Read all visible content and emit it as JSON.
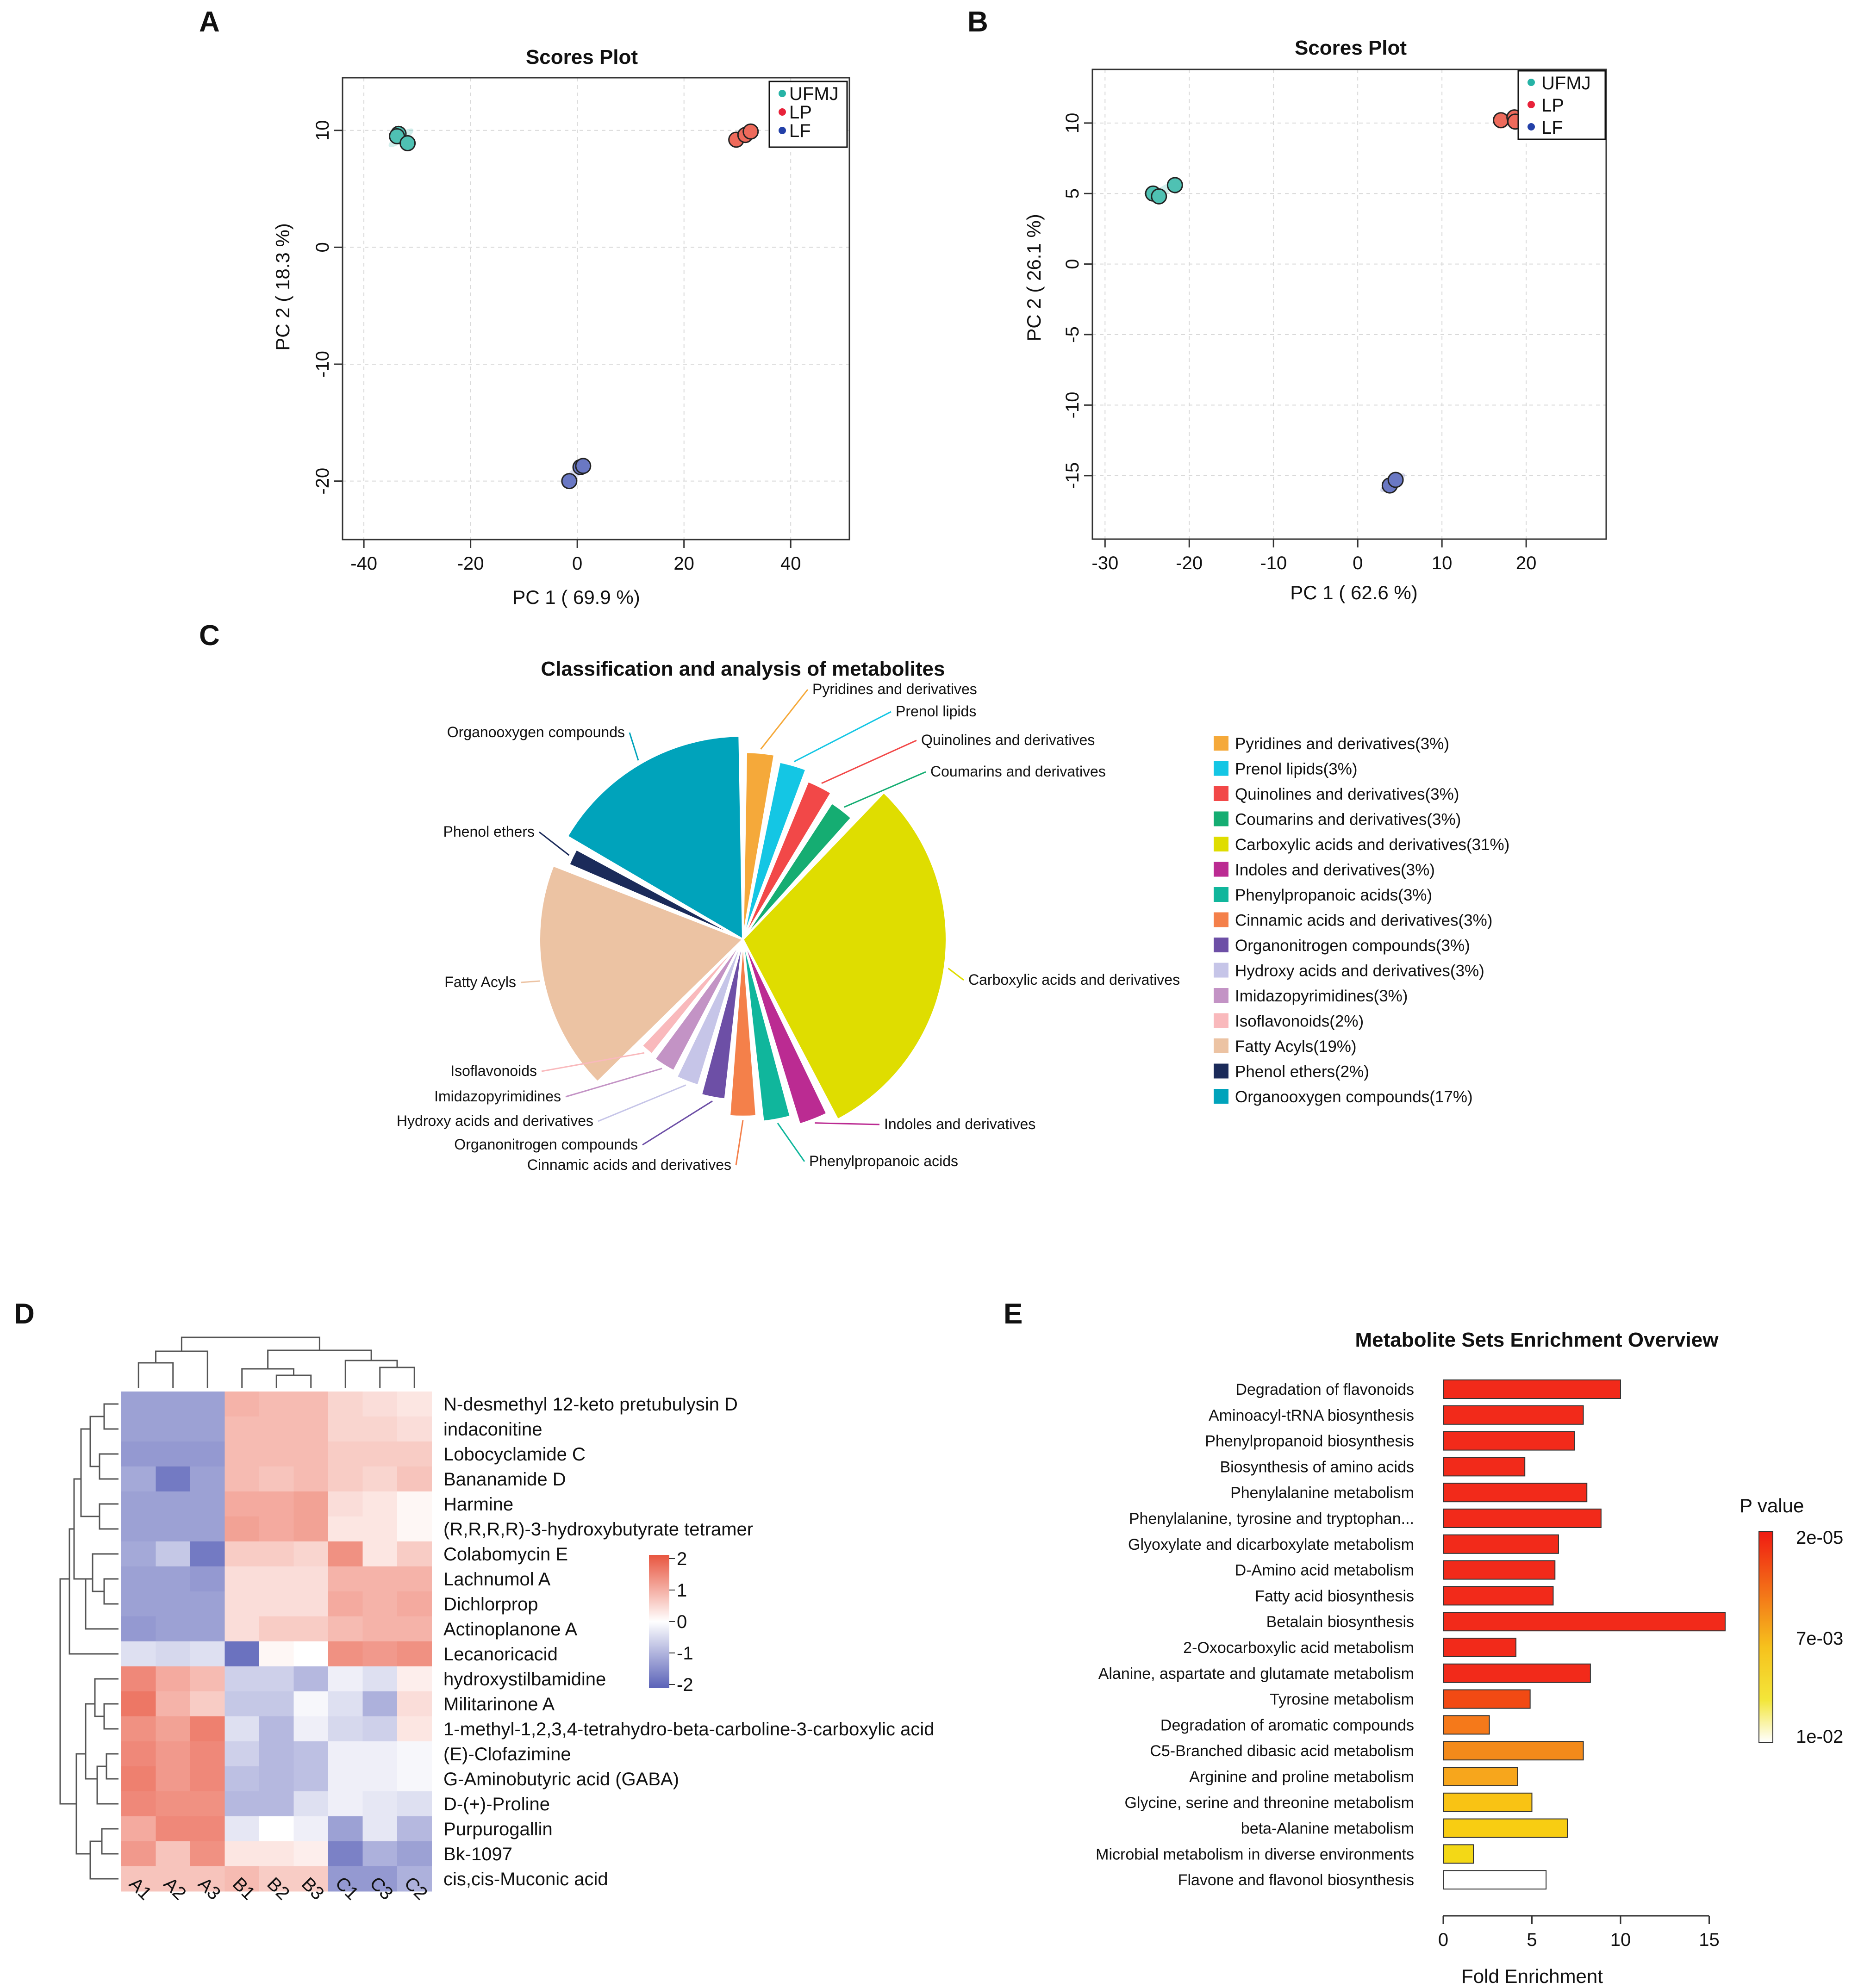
{
  "panels": {
    "a": "A",
    "b": "B",
    "c": "C",
    "d": "D",
    "e": "E"
  },
  "colors": {
    "UFMJ": "#4fc1b3",
    "LP": "#ee6a5b",
    "LF": "#6a78c4"
  },
  "chart_data": [
    {
      "id": "A",
      "type": "scatter",
      "title": "Scores Plot",
      "xlabel": "PC 1 ( 69.9 %)",
      "ylabel": "PC 2 ( 18.3 %)",
      "xlim": [
        -44,
        51
      ],
      "ylim": [
        -25,
        14.5
      ],
      "xticks": [
        -40,
        -20,
        0,
        20,
        40
      ],
      "yticks": [
        10,
        0,
        -10,
        -20
      ],
      "tick_labels_x": [
        "-40",
        "-20",
        "0",
        "20",
        "40"
      ],
      "tick_labels_y": [
        "10",
        "0",
        "-10",
        "-20"
      ],
      "grid": true,
      "legend": "top-right",
      "legend_labels": [
        "UFMJ",
        "LP",
        "LF"
      ],
      "series": [
        {
          "name": "UFMJ",
          "points": [
            [
              -33.5,
              9.7
            ],
            [
              -33.8,
              9.5
            ],
            [
              -31.8,
              8.9
            ]
          ]
        },
        {
          "name": "LP",
          "points": [
            [
              29.8,
              9.2
            ],
            [
              31.5,
              9.6
            ],
            [
              32.5,
              9.9
            ]
          ]
        },
        {
          "name": "LF",
          "points": [
            [
              -1.5,
              -20.0
            ],
            [
              0.6,
              -18.8
            ],
            [
              1.1,
              -18.7
            ]
          ]
        }
      ]
    },
    {
      "id": "B",
      "type": "scatter",
      "title": "Scores Plot",
      "xlabel": "PC 1 ( 62.6 %)",
      "ylabel": "PC 2 ( 26.1 %)",
      "xlim": [
        -31.5,
        29.5
      ],
      "ylim": [
        -19.5,
        13.8
      ],
      "xticks": [
        -30,
        -20,
        -10,
        0,
        10,
        20
      ],
      "yticks": [
        10,
        5,
        0,
        -5,
        -10,
        -15
      ],
      "tick_labels_x": [
        "-30",
        "-20",
        "-10",
        "0",
        "10",
        "20"
      ],
      "tick_labels_y": [
        "10",
        "5",
        "0",
        "-5",
        "-10",
        "-15"
      ],
      "grid": true,
      "legend": "top-right",
      "legend_labels": [
        "UFMJ",
        "LP",
        "LF"
      ],
      "series": [
        {
          "name": "UFMJ",
          "points": [
            [
              -24.3,
              5.0
            ],
            [
              -23.6,
              4.8
            ],
            [
              -21.7,
              5.6
            ]
          ]
        },
        {
          "name": "LP",
          "points": [
            [
              17.0,
              10.2
            ],
            [
              18.6,
              10.4
            ],
            [
              18.7,
              10.1
            ]
          ]
        },
        {
          "name": "LF",
          "points": [
            [
              3.8,
              -15.7
            ],
            [
              4.5,
              -15.3
            ]
          ]
        }
      ]
    },
    {
      "id": "C",
      "type": "pie",
      "title": "Classification and analysis of metabolites",
      "slices": [
        {
          "label": "Pyridines and derivatives",
          "legend": "Pyridines and derivatives(3%)",
          "value": 3,
          "r": 0.92,
          "color": "#f5a93a"
        },
        {
          "label": "Prenol lipids",
          "legend": "Prenol lipids(3%)",
          "value": 3,
          "r": 0.89,
          "color": "#14c6e4"
        },
        {
          "label": "Quinolines and derivatives",
          "legend": "Quinolines and derivatives(3%)",
          "value": 3,
          "r": 0.84,
          "color": "#f24848"
        },
        {
          "label": "Coumarins and derivatives",
          "legend": "Coumarins and derivatives(3%)",
          "value": 3,
          "r": 0.8,
          "color": "#15ad72"
        },
        {
          "label": "Carboxylic acids and derivatives",
          "legend": "Carboxylic acids and derivatives(31%)",
          "value": 31,
          "r": 1.0,
          "color": "#dfdd00"
        },
        {
          "label": "Indoles and derivatives",
          "legend": "Indoles and derivatives(3%)",
          "value": 3,
          "r": 0.95,
          "color": "#bb2b92"
        },
        {
          "label": "Phenylpropanoic acids",
          "legend": "Phenylpropanoic acids(3%)",
          "value": 3,
          "r": 0.9,
          "color": "#10b69c"
        },
        {
          "label": "Cinnamic acids and derivatives",
          "legend": "Cinnamic acids and derivatives(3%)",
          "value": 3,
          "r": 0.87,
          "color": "#f4804a"
        },
        {
          "label": "Organonitrogen compounds",
          "legend": "Organonitrogen compounds(3%)",
          "value": 3,
          "r": 0.79,
          "color": "#6d4fa6"
        },
        {
          "label": "Hydroxy acids and derivatives",
          "legend": "Hydroxy acids and derivatives(3%)",
          "value": 3,
          "r": 0.75,
          "color": "#c6c5e8"
        },
        {
          "label": "Imidazopyrimidines",
          "legend": "Imidazopyrimidines(3%)",
          "value": 3,
          "r": 0.73,
          "color": "#c393c5"
        },
        {
          "label": "Isoflavonoids",
          "legend": "Isoflavonoids(2%)",
          "value": 2,
          "r": 0.72,
          "color": "#f9b9bc"
        },
        {
          "label": "Fatty Acyls",
          "legend": "Fatty Acyls(19%)",
          "value": 19,
          "r": 1.0,
          "color": "#ecc3a3"
        },
        {
          "label": "Phenol ethers",
          "legend": "Phenol ethers(2%)",
          "value": 2,
          "r": 0.93,
          "color": "#1b2b5a"
        },
        {
          "label": "Organooxygen compounds",
          "legend": "Organooxygen compounds(17%)",
          "value": 17,
          "r": 1.0,
          "color": "#00a3bb"
        }
      ]
    },
    {
      "id": "D",
      "type": "heatmap",
      "columns": [
        "A1",
        "A2",
        "A3",
        "B1",
        "B2",
        "B3",
        "C1",
        "C3",
        "C2"
      ],
      "rows": [
        "N-desmethyl 12-keto pretubulysin D",
        "indaconitine",
        "Lobocyclamide C",
        "Bananamide D",
        "Harmine",
        "(R,R,R,R)-3-hydroxybutyrate tetramer",
        "Colabomycin E",
        "Lachnumol A",
        "Dichlorprop",
        "Actinoplanone A",
        "Lecanoricacid",
        "hydroxystilbamidine",
        "Militarinone A",
        "1-methyl-1,2,3,4-tetrahydro-beta-carboline-3-carboxylic acid",
        "(E)-Clofazimine",
        "G-Aminobutyric acid (GABA)",
        "D-(+)-Proline",
        "Purpurogallin",
        "Bk-1097",
        "cis,cis-Muconic acid"
      ],
      "values": [
        [
          -1.2,
          -1.2,
          -1.2,
          0.9,
          0.8,
          0.8,
          0.5,
          0.4,
          0.3
        ],
        [
          -1.2,
          -1.2,
          -1.2,
          0.8,
          0.8,
          0.8,
          0.5,
          0.5,
          0.4
        ],
        [
          -1.3,
          -1.3,
          -1.3,
          0.8,
          0.8,
          0.8,
          0.6,
          0.6,
          0.6
        ],
        [
          -1.1,
          -1.7,
          -1.2,
          0.8,
          0.7,
          0.8,
          0.6,
          0.5,
          0.7
        ],
        [
          -1.2,
          -1.2,
          -1.2,
          1.0,
          1.0,
          1.1,
          0.4,
          0.3,
          0.1
        ],
        [
          -1.2,
          -1.2,
          -1.2,
          1.1,
          1.0,
          1.1,
          0.3,
          0.3,
          0.1
        ],
        [
          -1.1,
          -0.7,
          -1.7,
          0.6,
          0.6,
          0.5,
          1.3,
          0.3,
          0.6
        ],
        [
          -1.2,
          -1.2,
          -1.3,
          0.4,
          0.4,
          0.4,
          0.9,
          0.9,
          0.9
        ],
        [
          -1.2,
          -1.2,
          -1.2,
          0.4,
          0.4,
          0.4,
          1.0,
          0.9,
          1.0
        ],
        [
          -1.3,
          -1.2,
          -1.2,
          0.4,
          0.6,
          0.6,
          0.8,
          0.9,
          0.9
        ],
        [
          -0.4,
          -0.5,
          -0.4,
          -1.8,
          0.1,
          0.0,
          1.3,
          1.2,
          1.3
        ],
        [
          1.4,
          1.0,
          0.8,
          -0.6,
          -0.6,
          -0.9,
          -0.2,
          -0.4,
          0.2
        ],
        [
          1.6,
          0.9,
          0.6,
          -0.7,
          -0.7,
          -0.1,
          -0.4,
          -1.0,
          0.4
        ],
        [
          1.3,
          1.1,
          1.5,
          -0.4,
          -0.9,
          -0.2,
          -0.5,
          -0.6,
          0.3
        ],
        [
          1.4,
          1.2,
          1.4,
          -0.6,
          -0.9,
          -0.8,
          -0.2,
          -0.2,
          -0.1
        ],
        [
          1.5,
          1.2,
          1.4,
          -0.8,
          -0.9,
          -0.8,
          -0.2,
          -0.2,
          -0.1
        ],
        [
          1.4,
          1.3,
          1.3,
          -0.9,
          -0.9,
          -0.4,
          -0.2,
          -0.3,
          -0.4
        ],
        [
          1.0,
          1.4,
          1.4,
          -0.3,
          0.0,
          -0.2,
          -1.2,
          -0.3,
          -0.9
        ],
        [
          1.2,
          0.7,
          1.3,
          0.3,
          0.3,
          0.2,
          -1.6,
          -1.0,
          -1.2
        ],
        [
          0.7,
          0.7,
          0.7,
          0.8,
          0.6,
          0.6,
          -1.3,
          -1.3,
          -1.0
        ]
      ],
      "scale_ticks": [
        "2",
        "1",
        "0",
        "-1",
        "-2"
      ],
      "scale_range": [
        -2,
        2
      ]
    },
    {
      "id": "E",
      "type": "bar",
      "orientation": "horizontal",
      "title": "Metabolite Sets Enrichment Overview",
      "xlabel": "Fold Enrichment",
      "xticks": [
        0,
        5,
        10,
        15
      ],
      "tick_labels_x": [
        "0",
        "5",
        "10",
        "15"
      ],
      "xlim": [
        0,
        16
      ],
      "legend_title": "P value",
      "legend_ticks": [
        "2e-05",
        "7e-03",
        "1e-02"
      ],
      "categories": [
        "Degradation of flavonoids",
        "Aminoacyl-tRNA biosynthesis",
        "Phenylpropanoid biosynthesis",
        "Biosynthesis of amino acids",
        "Phenylalanine metabolism",
        "Phenylalanine, tyrosine and tryptophan...",
        "Glyoxylate and dicarboxylate metabolism",
        "D-Amino acid metabolism",
        "Fatty acid biosynthesis",
        "Betalain biosynthesis",
        "2-Oxocarboxylic acid metabolism",
        "Alanine, aspartate and glutamate metabolism",
        "Tyrosine metabolism",
        "Degradation of aromatic compounds",
        "C5-Branched dibasic acid metabolism",
        "Arginine and proline metabolism",
        "Glycine, serine and threonine metabolism",
        "beta-Alanine metabolism",
        "Microbial metabolism in diverse environments",
        "Flavone and flavonol biosynthesis"
      ],
      "values": [
        10.0,
        7.9,
        7.4,
        4.6,
        8.1,
        8.9,
        6.5,
        6.3,
        6.2,
        15.9,
        4.1,
        8.3,
        4.9,
        2.6,
        7.9,
        4.2,
        5.0,
        7.0,
        1.7,
        5.8
      ],
      "colors": [
        "#f22a1a",
        "#f22a1a",
        "#f22a1a",
        "#f22a1a",
        "#f22a1a",
        "#f22a1a",
        "#f22a1a",
        "#f22a1a",
        "#f22a1a",
        "#f22a1a",
        "#f22a1a",
        "#f22a1a",
        "#f24a14",
        "#f5791a",
        "#f38a1a",
        "#f7a61c",
        "#f9c314",
        "#f8cd12",
        "#f3d816",
        "#ffffff"
      ]
    }
  ]
}
